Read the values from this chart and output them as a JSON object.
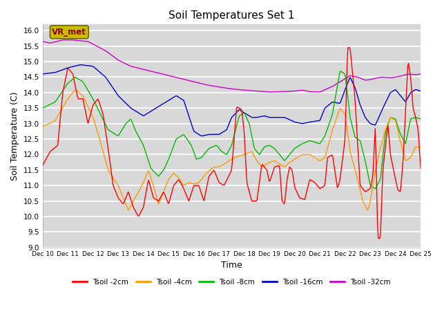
{
  "title": "Soil Temperatures Set 1",
  "xlabel": "Time",
  "ylabel": "Soil Temperature (C)",
  "ylim": [
    9.0,
    16.2
  ],
  "background_color": "#d8d8d8",
  "plot_background": "#d8d8d8",
  "legend_label": "VR_met",
  "legend_box_color": "#ccbb00",
  "legend_text_color": "#8b0000",
  "series_colors": {
    "Tsoil -2cm": "#ff0000",
    "Tsoil -4cm": "#ff9900",
    "Tsoil -8cm": "#00bb00",
    "Tsoil -16cm": "#0000cc",
    "Tsoil -32cm": "#cc00cc"
  },
  "xtick_labels": [
    "Dec 10",
    "Dec 11",
    "Dec 12",
    "Dec 13",
    "Dec 14",
    "Dec 15",
    "Dec 16",
    "Dec 17",
    "Dec 18",
    "Dec 19",
    "Dec 20",
    "Dec 21",
    "Dec 22",
    "Dec 23",
    "Dec 24",
    "Dec 25"
  ],
  "ytick_values": [
    9.0,
    9.5,
    10.0,
    10.5,
    11.0,
    11.5,
    12.0,
    12.5,
    13.0,
    13.5,
    14.0,
    14.5,
    15.0,
    15.5,
    16.0
  ]
}
